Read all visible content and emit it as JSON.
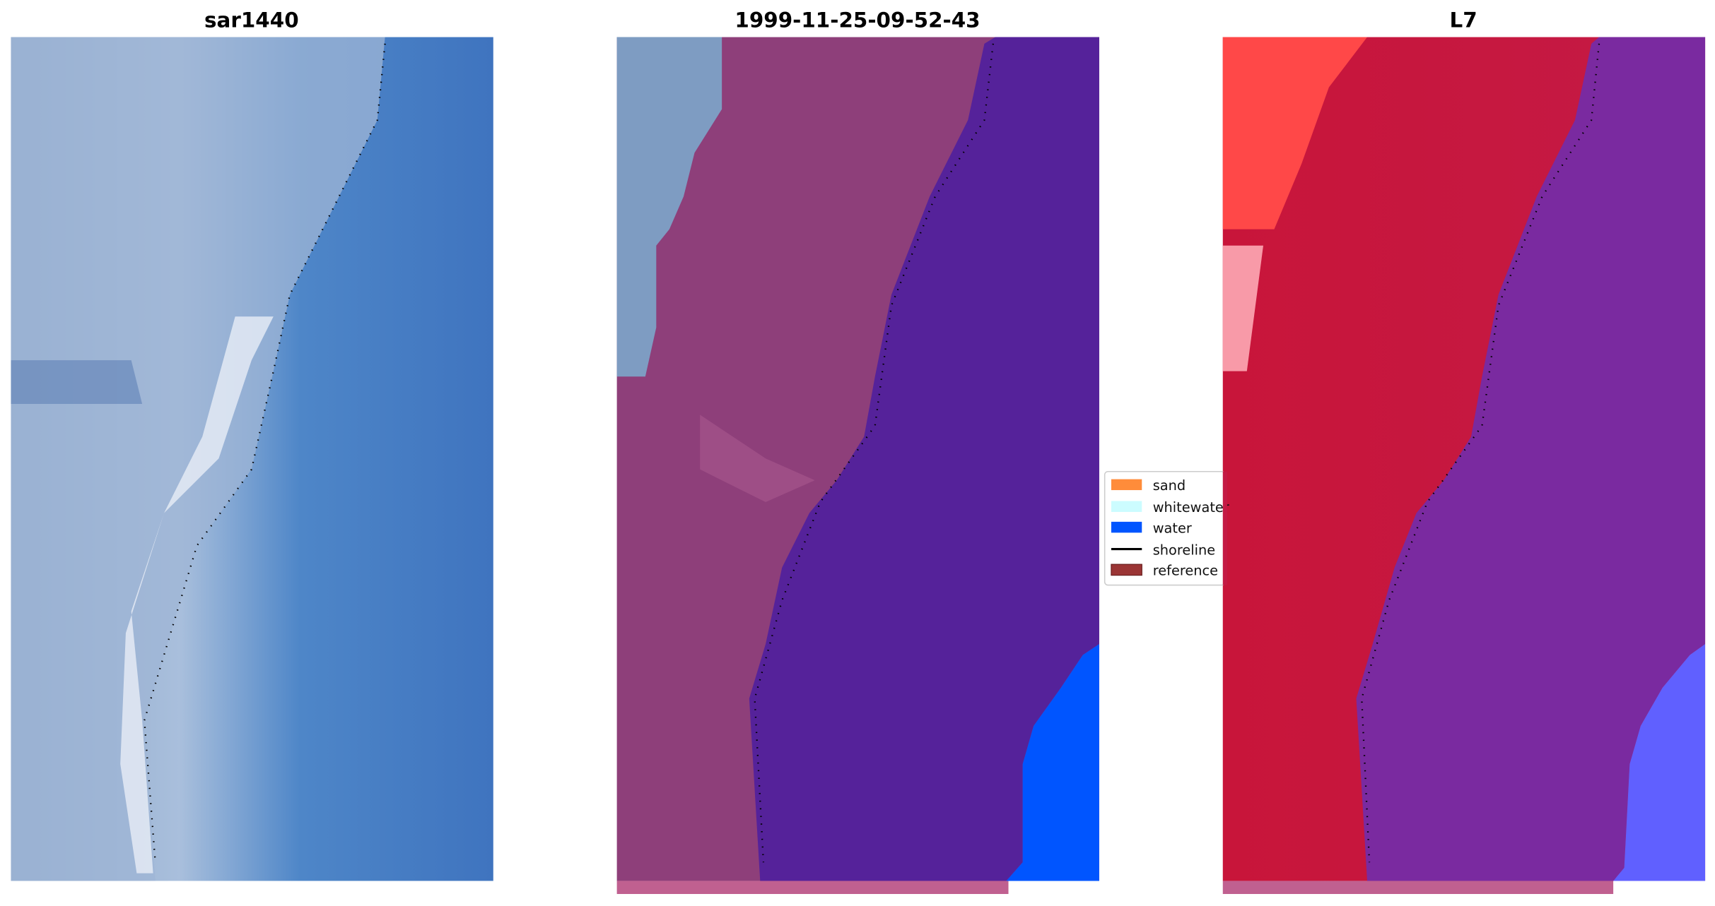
{
  "panels": [
    {
      "title": "sar1440",
      "type": "satellite-image"
    },
    {
      "title": "1999-11-25-09-52-43",
      "type": "classified-image"
    },
    {
      "title": "L7",
      "type": "false-color-image"
    }
  ],
  "legend": {
    "items": [
      {
        "label": "sand",
        "color": "#ff8c3a"
      },
      {
        "label": "whitewater",
        "color": "#ccfcff"
      },
      {
        "label": "water",
        "color": "#0055ff"
      },
      {
        "label": "shoreline",
        "color": "#000000",
        "kind": "line"
      },
      {
        "label": "reference",
        "color": "#9b3535"
      }
    ]
  },
  "colors": {
    "water_class": "#0055ff",
    "other_class": "#55229a",
    "land_overlay": "#8e3f7a",
    "reference_strip": "#c06090"
  }
}
